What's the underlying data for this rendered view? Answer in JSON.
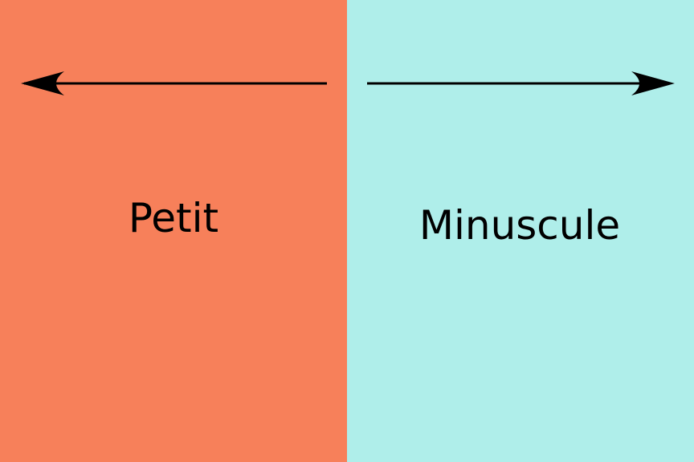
{
  "panels": {
    "left": {
      "label": "Petit",
      "color": "#F7805A",
      "arrow_direction": "left"
    },
    "right": {
      "label": "Minuscule",
      "color": "#AFEEEA",
      "arrow_direction": "right"
    }
  },
  "colors": {
    "text": "#000000",
    "arrow": "#000000"
  }
}
